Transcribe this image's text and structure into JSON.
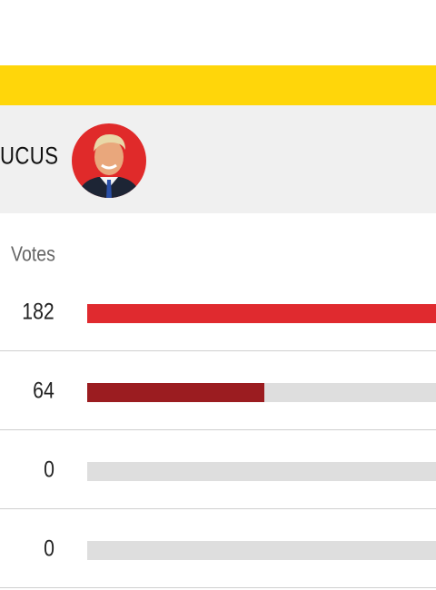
{
  "header": {
    "title": "UCUS"
  },
  "table": {
    "column_label": "Votes",
    "rows": [
      {
        "votes": 182
      },
      {
        "votes": 64
      },
      {
        "votes": 0
      },
      {
        "votes": 0
      }
    ]
  }
}
